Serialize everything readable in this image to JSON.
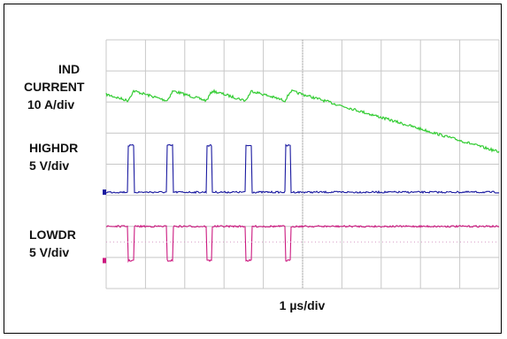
{
  "chart_data": {
    "type": "line",
    "title": "",
    "xlabel": "1 µs/div",
    "ylabel": "",
    "grid": true,
    "x_divisions": 10,
    "y_divisions": 8,
    "channels": [
      {
        "label_lines": [
          "IND",
          "CURRENT",
          "10 A/div"
        ],
        "color": "#33cc33",
        "kind": "sawtooth"
      },
      {
        "label_lines": [
          "HIGHDR",
          "5 V/div"
        ],
        "color": "#1a1aa0",
        "kind": "pulse-high"
      },
      {
        "label_lines": [
          "LOWDR",
          "5 V/div"
        ],
        "color": "#cc1a80",
        "kind": "pulse-low"
      }
    ],
    "pulse_start_div": [
      0.55,
      1.55,
      2.55,
      3.55,
      4.55
    ],
    "pulse_width_div": 0.15
  }
}
